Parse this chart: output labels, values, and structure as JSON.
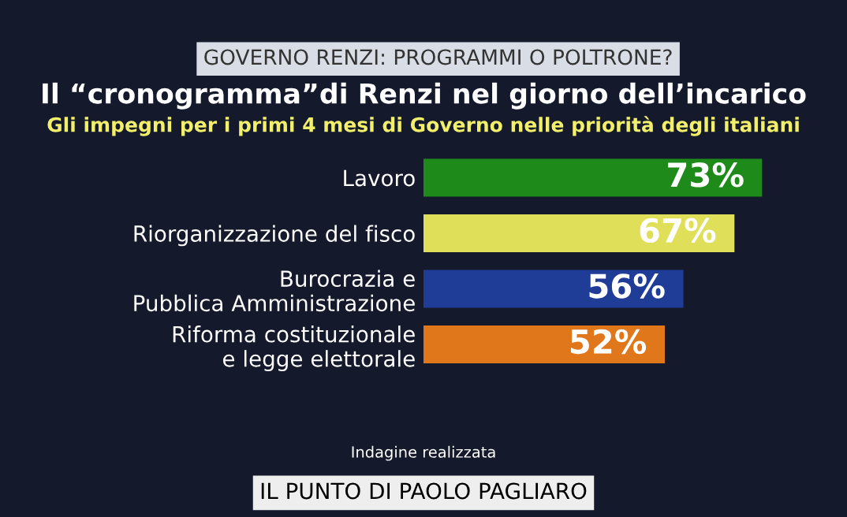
{
  "chart_data": {
    "type": "bar",
    "orientation": "horizontal",
    "title": "Il “cronogramma”di Renzi nel giorno dell’incarico",
    "subtitle": "Gli impegni per i primi 4 mesi di Governo nelle priorità degli italiani",
    "categories": [
      "Lavoro",
      "Riorganizzazione del fisco",
      "Burocrazia e\nPubblica Amministrazione",
      "Riforma costituzionale\ne legge elettorale"
    ],
    "values": [
      73,
      67,
      56,
      52
    ],
    "colors": [
      "#1e8a1a",
      "#e0df5a",
      "#1f3c96",
      "#e0771a"
    ],
    "value_labels": [
      "73%",
      "67%",
      "56%",
      "52%"
    ],
    "annotations": [
      "GOVERNO RENZI: PROGRAMMI O POLTRONE?",
      "Indagine realizzata",
      "IL PUNTO DI PAOLO PAGLIARO"
    ],
    "grid": false,
    "legend": false
  }
}
